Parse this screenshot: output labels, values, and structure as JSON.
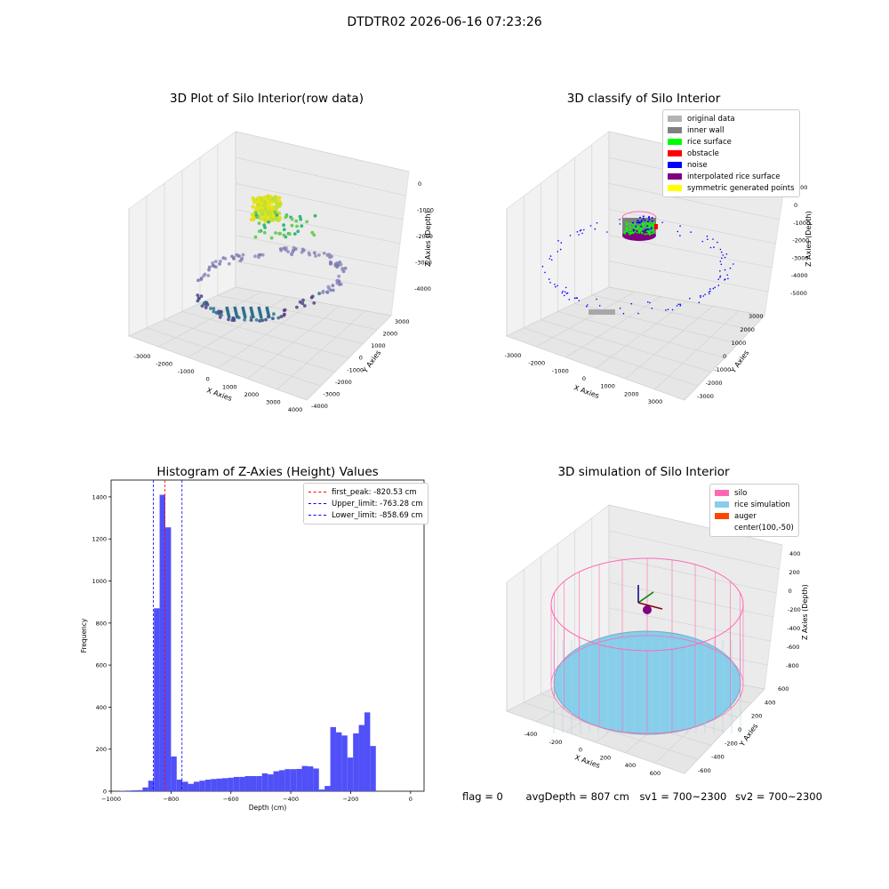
{
  "figure": {
    "suptitle": "DTDTR02 2026-06-16 07:23:26"
  },
  "panels": {
    "raw": {
      "title": "3D Plot of Silo Interior(row data)",
      "xlabel": "X Axies",
      "ylabel": "Y Axies",
      "zlabel": "Z Axies (Depth)",
      "xticks": [
        "-3000",
        "-2000",
        "-1000",
        "0",
        "1000",
        "2000",
        "3000",
        "4000"
      ],
      "yticks": [
        "-4000",
        "-3000",
        "-2000",
        "-1000",
        "0",
        "1000",
        "2000",
        "3000"
      ],
      "zticks": [
        "0",
        "-1000",
        "-2000",
        "-3000",
        "-4000"
      ]
    },
    "classify": {
      "title": "3D classify of Silo Interior",
      "xlabel": "X Axies",
      "ylabel": "Y Axies",
      "zlabel": "Z Axies (Depth)",
      "xticks": [
        "-3000",
        "-2000",
        "-1000",
        "0",
        "1000",
        "2000",
        "3000"
      ],
      "yticks": [
        "-3000",
        "-2000",
        "-1000",
        "0",
        "1000",
        "2000",
        "3000"
      ],
      "zticks": [
        "0",
        "-1000",
        "-2000",
        "-3000",
        "-4000",
        "-5000"
      ],
      "legend": [
        {
          "label": "original data",
          "color": "#b3b3b3"
        },
        {
          "label": "inner wall",
          "color": "#808080"
        },
        {
          "label": "rice surface",
          "color": "#00ff00"
        },
        {
          "label": "obstacle",
          "color": "#ff0000"
        },
        {
          "label": "noise",
          "color": "#0000ff"
        },
        {
          "label": "interpolated rice surface",
          "color": "#800080"
        },
        {
          "label": "symmetric generated points",
          "color": "#ffff00"
        }
      ],
      "zclip_label": "000"
    },
    "simulation": {
      "title": "3D simulation of Silo Interior",
      "xlabel": "X Axies",
      "ylabel": "Y Axies",
      "zlabel": "Z Axies (Depth)",
      "xticks": [
        "-400",
        "-200",
        "0",
        "200",
        "400",
        "600"
      ],
      "yticks": [
        "-600",
        "-400",
        "-200",
        "0",
        "200",
        "400",
        "600"
      ],
      "zticks": [
        "400",
        "200",
        "0",
        "-200",
        "-400",
        "-600",
        "-800"
      ],
      "legend": [
        {
          "label": "silo",
          "color": "#ff69b4"
        },
        {
          "label": "rice simulation",
          "color": "#87ceeb"
        },
        {
          "label": "auger",
          "color": "#ff4500"
        },
        {
          "label": "center(100,-50)",
          "color": "none"
        }
      ]
    }
  },
  "chart_data": {
    "type": "bar",
    "title": "Histogram of Z-Axies (Height) Values",
    "xlabel": "Depth (cm)",
    "ylabel": "Frequency",
    "xlim": [
      -1000,
      45
    ],
    "ylim": [
      0,
      1480
    ],
    "xticks": [
      -1000,
      -800,
      -600,
      -400,
      -200,
      0
    ],
    "yticks": [
      0,
      200,
      400,
      600,
      800,
      1000,
      1200,
      1400
    ],
    "bin_width": 19,
    "bins_left": [
      -990,
      -971,
      -952,
      -933,
      -914,
      -895,
      -876,
      -857,
      -838,
      -819,
      -800,
      -781,
      -762,
      -743,
      -724,
      -705,
      -686,
      -667,
      -648,
      -629,
      -610,
      -591,
      -572,
      -553,
      -534,
      -515,
      -496,
      -477,
      -458,
      -439,
      -420,
      -401,
      -382,
      -363,
      -344,
      -325,
      -306,
      -287,
      -268,
      -249,
      -230,
      -211,
      -192,
      -173,
      -154,
      -135,
      -116,
      -97,
      -78,
      -59,
      -40,
      -21
    ],
    "counts": [
      0,
      2,
      3,
      4,
      5,
      18,
      50,
      870,
      1410,
      1255,
      165,
      55,
      45,
      35,
      45,
      50,
      55,
      58,
      60,
      62,
      64,
      68,
      68,
      72,
      72,
      72,
      85,
      80,
      95,
      100,
      105,
      105,
      106,
      120,
      118,
      108,
      8,
      25,
      305,
      280,
      265,
      160,
      275,
      315,
      375,
      215,
      0,
      0,
      0,
      0,
      0,
      0
    ],
    "vlines": [
      {
        "label": "first_peak: -820.53 cm",
        "x": -820.53,
        "color": "#ff0000"
      },
      {
        "label": "Upper_limit: -763.28 cm",
        "x": -763.28,
        "color": "#0000ff"
      },
      {
        "label": "Lower_limit: -858.69 cm",
        "x": -858.69,
        "color": "#0000ff"
      }
    ],
    "bar_color": "#5050f8"
  },
  "footer": {
    "flag": "flag = 0",
    "avg_depth": "avgDepth = 807 cm",
    "sv1": "sv1 = 700~2300",
    "sv2": "sv2 = 700~2300"
  }
}
